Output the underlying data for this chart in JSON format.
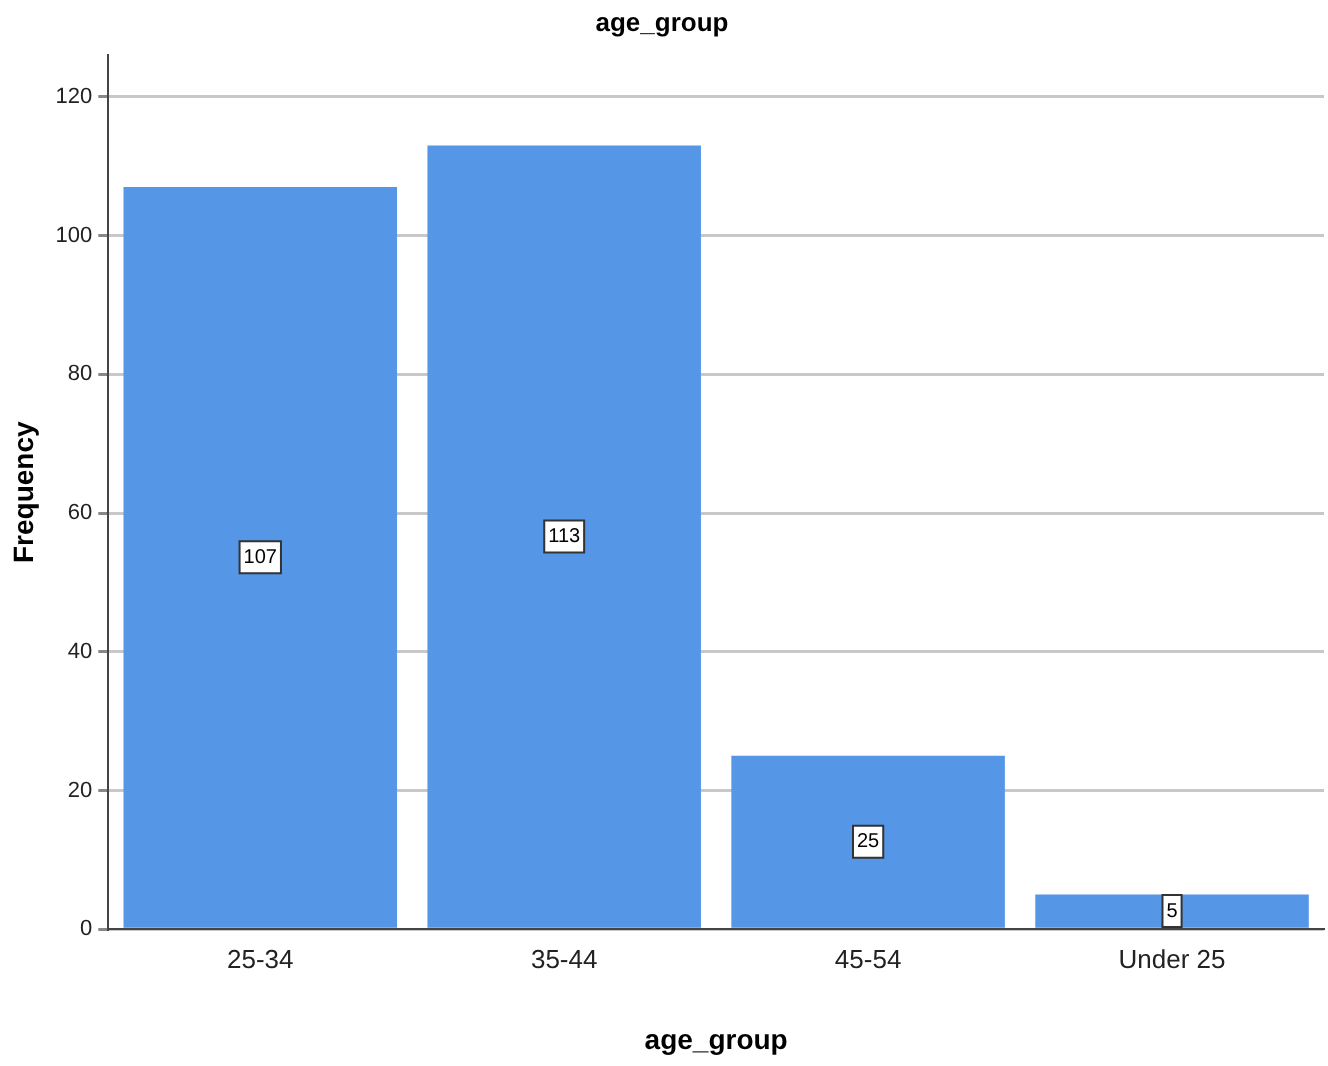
{
  "chart_data": {
    "type": "bar",
    "title": "age_group",
    "xlabel": "age_group",
    "ylabel": "Frequency",
    "categories": [
      "25-34",
      "35-44",
      "45-54",
      "Under 25"
    ],
    "values": [
      107,
      113,
      25,
      5
    ],
    "color": "#5596e6",
    "ylim": [
      0,
      126
    ],
    "yticks": [
      0,
      20,
      40,
      60,
      80,
      100,
      120
    ],
    "grid": "y",
    "data_labels": true
  }
}
